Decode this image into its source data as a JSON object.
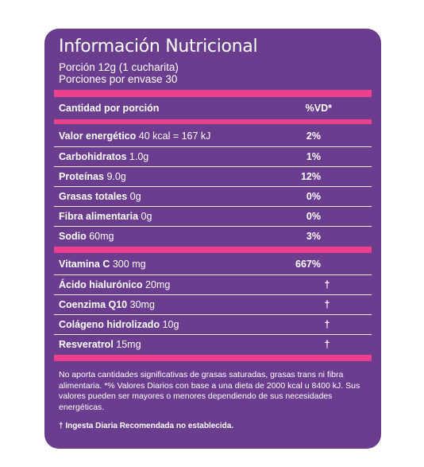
{
  "panel": {
    "title": "Información Nutricional",
    "serving_size": "Porción 12g (1 cucharita)",
    "servings_per_container": "Porciones por envase 30"
  },
  "header": {
    "amount_label": "Cantidad por porción",
    "dv_label": "%VD*"
  },
  "nutrients": [
    {
      "name": "Valor energético",
      "amount": "40 kcal = 167 kJ",
      "dv": "2%"
    },
    {
      "name": "Carbohidratos",
      "amount": "1.0g",
      "dv": "1%"
    },
    {
      "name": "Proteínas",
      "amount": "9.0g",
      "dv": "12%"
    },
    {
      "name": "Grasas totales",
      "amount": "0g",
      "dv": "0%"
    },
    {
      "name": "Fibra alimentaria",
      "amount": "0g",
      "dv": "0%"
    },
    {
      "name": "Sodio",
      "amount": "60mg",
      "dv": "3%"
    }
  ],
  "extras": [
    {
      "name": "Vitamina C",
      "amount": "300 mg",
      "dv": "667%"
    },
    {
      "name": "Ácido hialurónico",
      "amount": "20mg",
      "dv": "†"
    },
    {
      "name": "Coenzima Q10",
      "amount": "30mg",
      "dv": "†"
    },
    {
      "name": "Colágeno hidrolizado",
      "amount": "10g",
      "dv": "†"
    },
    {
      "name": "Resveratrol",
      "amount": "15mg",
      "dv": "†"
    }
  ],
  "footnote": "No aporta cantidades significativas de grasas saturadas, grasas trans ni fibra alimentaria. *% Valores Diarios con base a una dieta de 2000 kcal u 8400 kJ. Sus valores pueden ser mayores o menores dependiendo de sus necesidades energéticas.",
  "footnote_dagger": "† Ingesta Diaria Recomendada no establecida.",
  "colors": {
    "panel": "#6a3d8f",
    "accent_bar": "#ec3f8c",
    "text": "#ffffff"
  }
}
